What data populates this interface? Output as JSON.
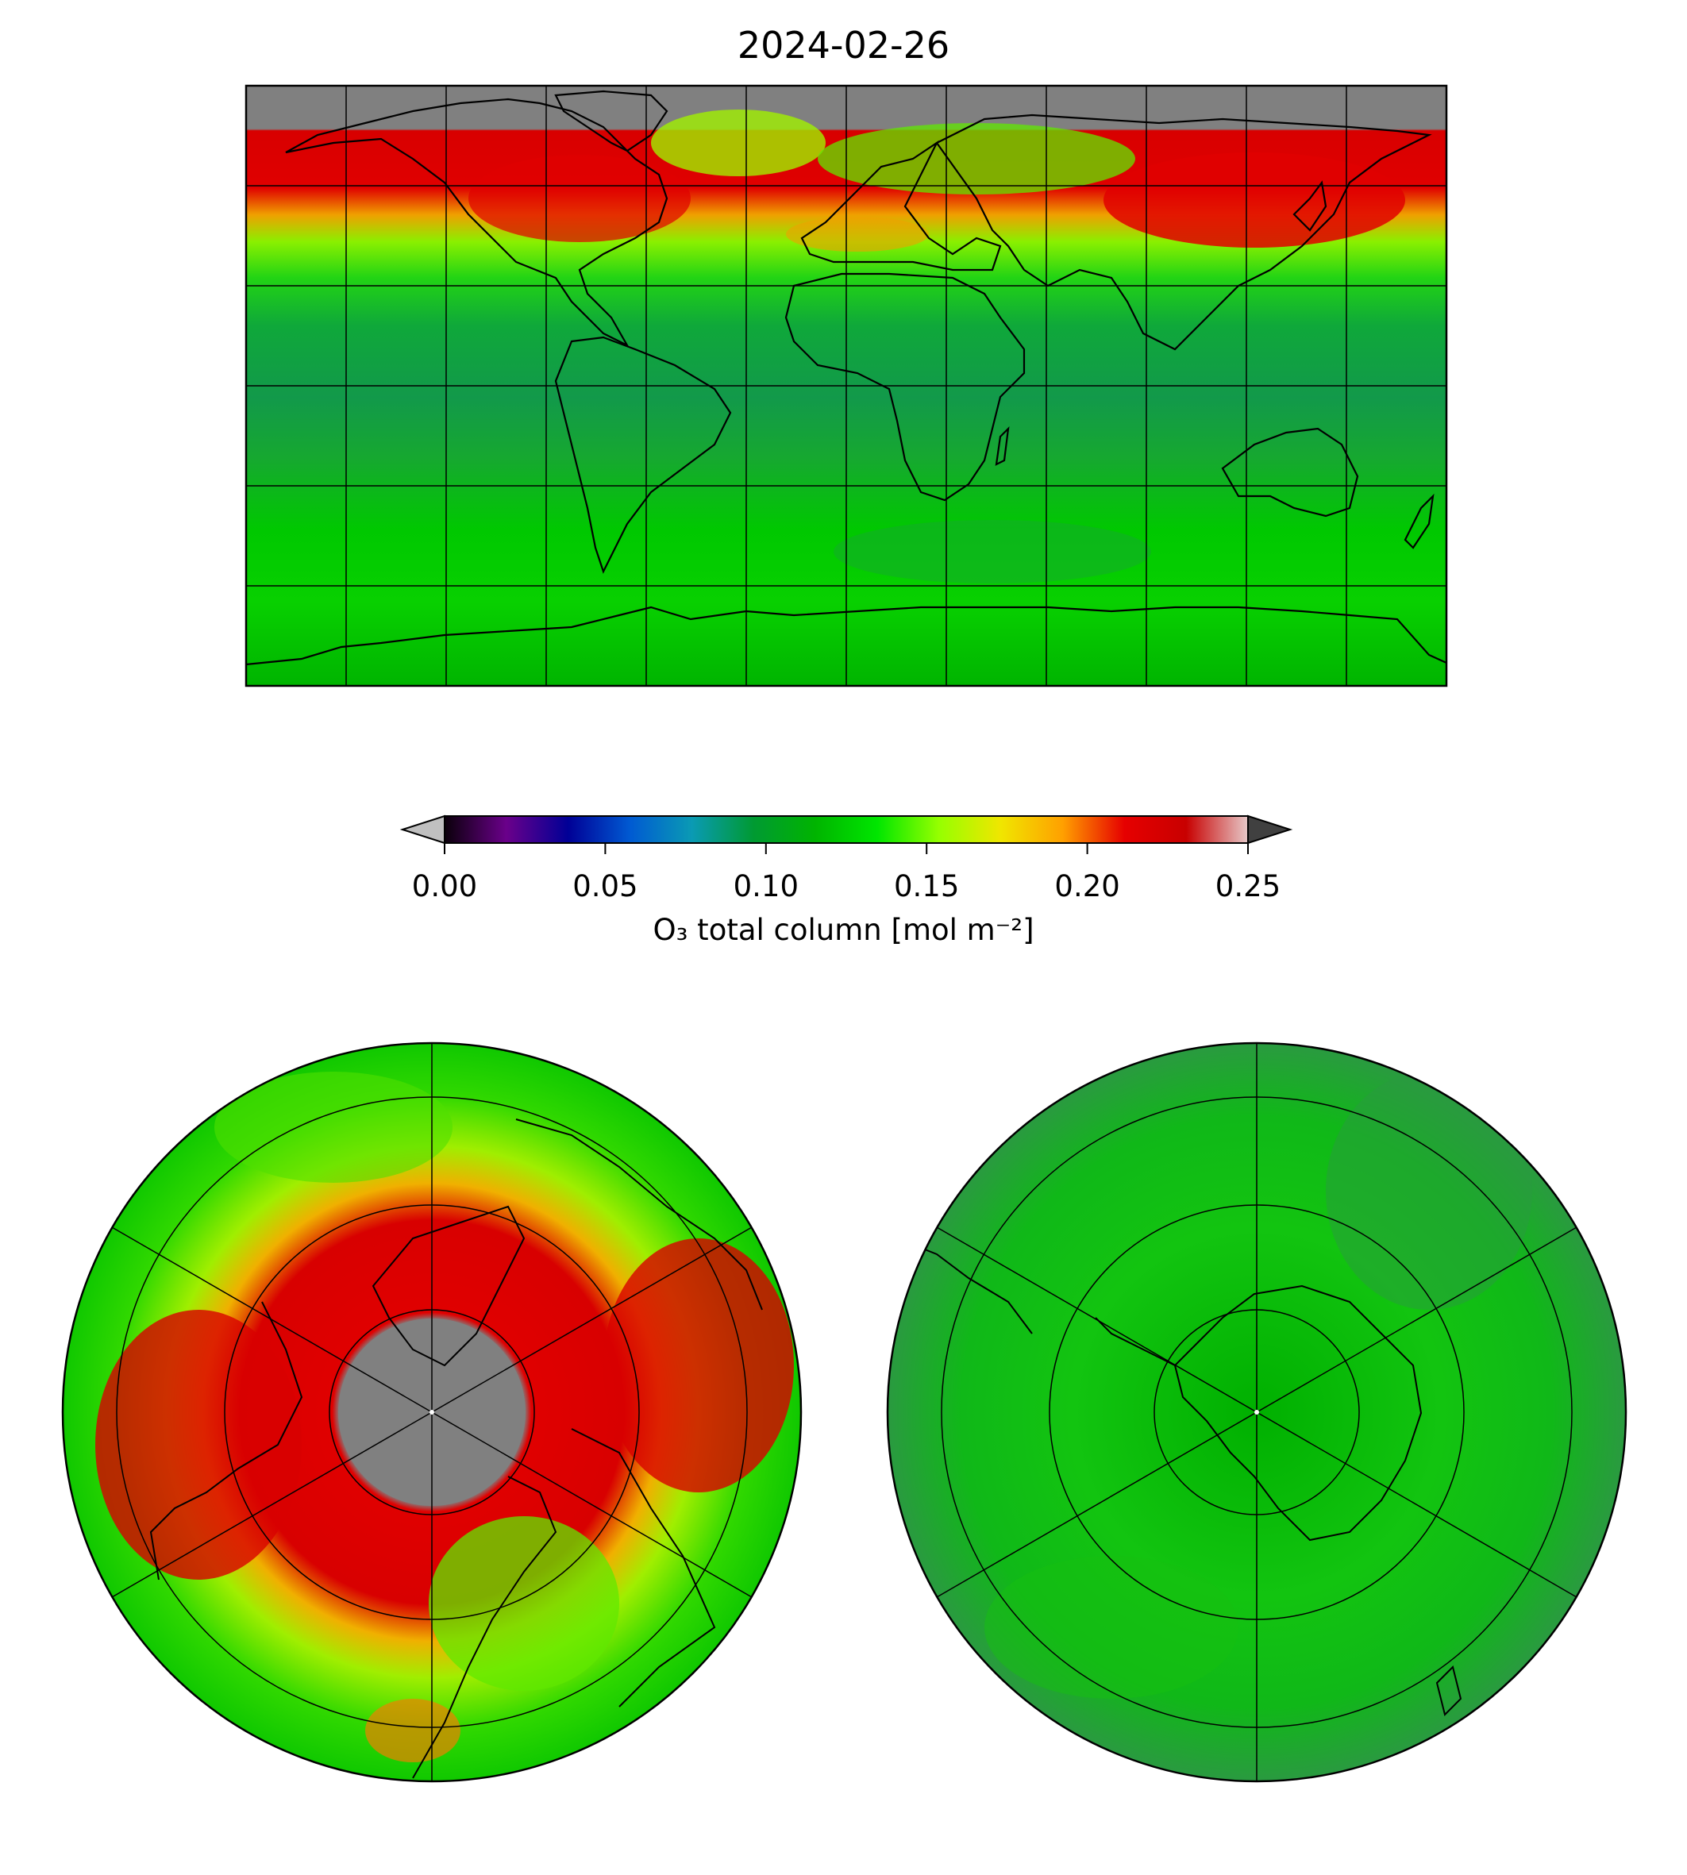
{
  "title": "2024-02-26",
  "colorbar": {
    "label": "O₃ total column [mol m⁻²]",
    "ticks": [
      "0.00",
      "0.05",
      "0.10",
      "0.15",
      "0.20",
      "0.25"
    ],
    "range": [
      0.0,
      0.25
    ],
    "extend": "both",
    "colormap": [
      "#0a000a",
      "#6a008a",
      "#000096",
      "#005ad2",
      "#0a9ab4",
      "#009a32",
      "#00b400",
      "#00e600",
      "#96ff00",
      "#f0e600",
      "#ffa000",
      "#e60000",
      "#c80000",
      "#e6c8c8"
    ]
  },
  "colors": {
    "missing": "#808080",
    "coastline": "#000000",
    "over": "#404040",
    "under": "#c0c0c0"
  },
  "chart_data": [
    {
      "type": "heatmap",
      "map": "global plate carree",
      "variable": "O3 total column",
      "units": "mol m-2",
      "gridlines": {
        "lon_step": 30,
        "lat_step": 30
      },
      "extent": {
        "lon": [
          -180,
          180
        ],
        "lat": [
          -90,
          90
        ]
      },
      "no_data": "gray north of ~77N (polar night)",
      "typical_values": [
        {
          "region": "northern high latitudes 60-75N",
          "value": 0.23
        },
        {
          "region": "NE Asia / N Pacific 35-60N",
          "value": 0.23
        },
        {
          "region": "N Atlantic / Europe 45-60N",
          "value": 0.19
        },
        {
          "region": "tropics",
          "value": 0.115
        },
        {
          "region": "southern mid-latitudes",
          "value": 0.135
        },
        {
          "region": "Antarctica",
          "value": 0.13
        }
      ]
    },
    {
      "type": "heatmap",
      "map": "north polar stereographic",
      "gridlines": {
        "meridian_step": 60,
        "lat_circles": [
          80,
          60,
          40,
          20
        ]
      },
      "no_data": "gray disc around the pole",
      "typical_values": [
        {
          "region": "polar vortex collar 60-75N",
          "value": 0.235
        },
        {
          "region": "mid-latitudes",
          "value": 0.17
        }
      ]
    },
    {
      "type": "heatmap",
      "map": "south polar stereographic",
      "gridlines": {
        "meridian_step": 60,
        "lat_circles": [
          -80,
          -60,
          -40,
          -20
        ]
      },
      "typical_values": [
        {
          "region": "whole hemisphere",
          "value": 0.13
        }
      ]
    }
  ]
}
